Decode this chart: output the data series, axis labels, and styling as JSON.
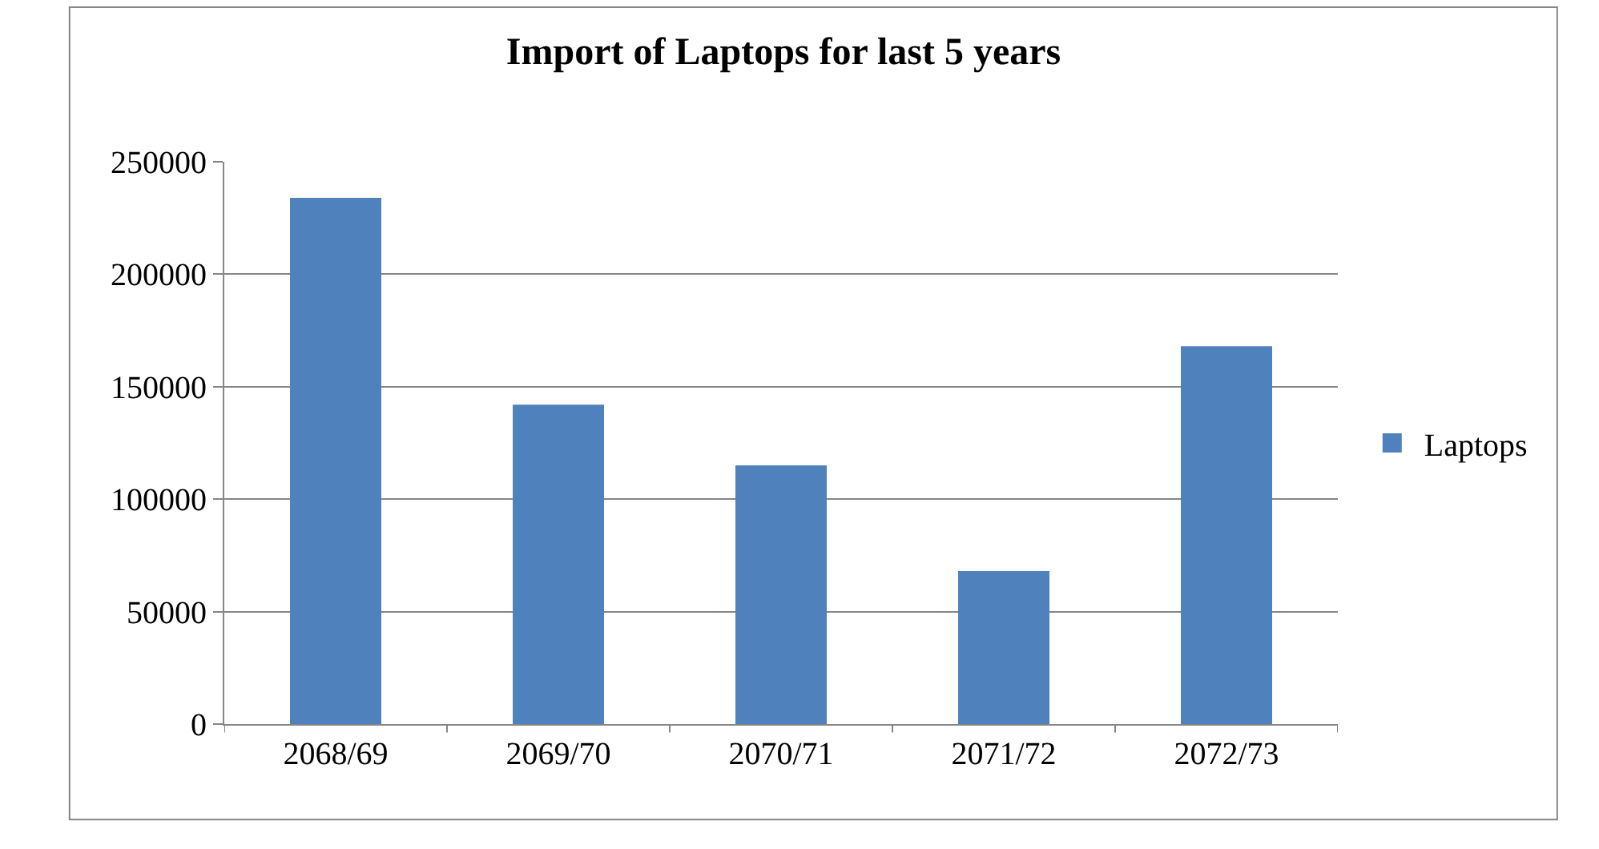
{
  "chart_data": {
    "type": "bar",
    "title": "Import of Laptops for last 5 years",
    "categories": [
      "2068/69",
      "2069/70",
      "2070/71",
      "2071/72",
      "2072/73"
    ],
    "series": [
      {
        "name": "Laptops",
        "color": "#4f81bd",
        "values": [
          234000,
          142000,
          115000,
          68000,
          168000
        ]
      }
    ],
    "ylim": [
      0,
      250000
    ],
    "yticks": [
      0,
      50000,
      100000,
      150000,
      200000,
      250000
    ],
    "grid": "y",
    "legend": "right"
  }
}
